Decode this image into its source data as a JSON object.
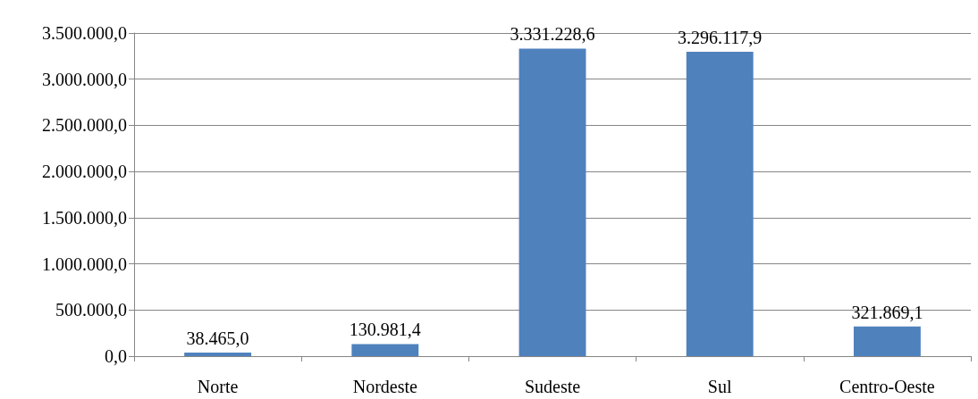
{
  "chart_data": {
    "type": "bar",
    "categories": [
      "Norte",
      "Nordeste",
      "Sudeste",
      "Sul",
      "Centro-Oeste"
    ],
    "values": [
      38465.0,
      130981.4,
      3331228.6,
      3296117.9,
      321869.1
    ],
    "value_labels": [
      "38.465,0",
      "130.981,4",
      "3.331.228,6",
      "3.296.117,9",
      "321.869,1"
    ],
    "color": "#4f81bd",
    "ylim": [
      0,
      3500000
    ],
    "yticks": [
      {
        "value": 0,
        "label": "0,0"
      },
      {
        "value": 500000,
        "label": "500.000,0"
      },
      {
        "value": 1000000,
        "label": "1.000.000,0"
      },
      {
        "value": 1500000,
        "label": "1.500.000,0"
      },
      {
        "value": 2000000,
        "label": "2.000.000,0"
      },
      {
        "value": 2500000,
        "label": "2.500.000,0"
      },
      {
        "value": 3000000,
        "label": "3.000.000,0"
      },
      {
        "value": 3500000,
        "label": "3.500.000,0"
      }
    ],
    "grid": "y"
  }
}
